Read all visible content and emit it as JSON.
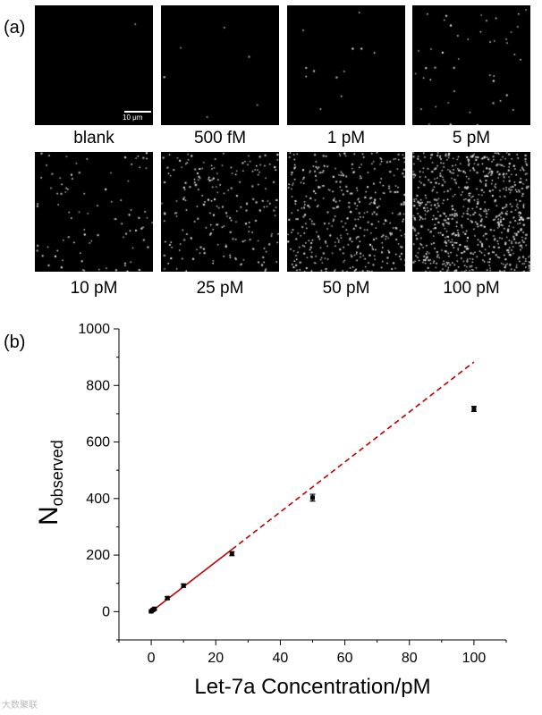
{
  "figure": {
    "panel_a_label": "(a)",
    "panel_b_label": "(b)",
    "scale_bar_label": "10 μm",
    "watermark": "大数聚联"
  },
  "micrographs": [
    {
      "label": "blank",
      "spot_count": 1
    },
    {
      "label": "500 fM",
      "spot_count": 6
    },
    {
      "label": "1 pM",
      "spot_count": 12
    },
    {
      "label": "5 pM",
      "spot_count": 45
    },
    {
      "label": "10 pM",
      "spot_count": 90
    },
    {
      "label": "25 pM",
      "spot_count": 210
    },
    {
      "label": "50 pM",
      "spot_count": 400
    },
    {
      "label": "100 pM",
      "spot_count": 720
    }
  ],
  "chart_data": {
    "type": "scatter",
    "xlabel": "Let-7a Concentration/pM",
    "ylabel_main": "N",
    "ylabel_sub": "observed",
    "xlim": [
      -10,
      110
    ],
    "ylim": [
      -100,
      1000
    ],
    "xticks": [
      0,
      20,
      40,
      60,
      80,
      100
    ],
    "yticks": [
      0,
      200,
      400,
      600,
      800,
      1000
    ],
    "points": [
      {
        "x": 0,
        "y": 1,
        "err": 3
      },
      {
        "x": 0.5,
        "y": 6,
        "err": 3
      },
      {
        "x": 1,
        "y": 10,
        "err": 4
      },
      {
        "x": 5,
        "y": 48,
        "err": 5
      },
      {
        "x": 10,
        "y": 92,
        "err": 6
      },
      {
        "x": 25,
        "y": 205,
        "err": 7
      },
      {
        "x": 50,
        "y": 403,
        "err": 12
      },
      {
        "x": 100,
        "y": 717,
        "err": 9
      }
    ],
    "fit_solid": {
      "x": [
        0,
        25
      ],
      "y": [
        0,
        220
      ]
    },
    "fit_dashed": {
      "x": [
        25,
        100
      ],
      "y": [
        220,
        883
      ]
    },
    "fit_color": "#c00000",
    "point_color": "#000000"
  }
}
